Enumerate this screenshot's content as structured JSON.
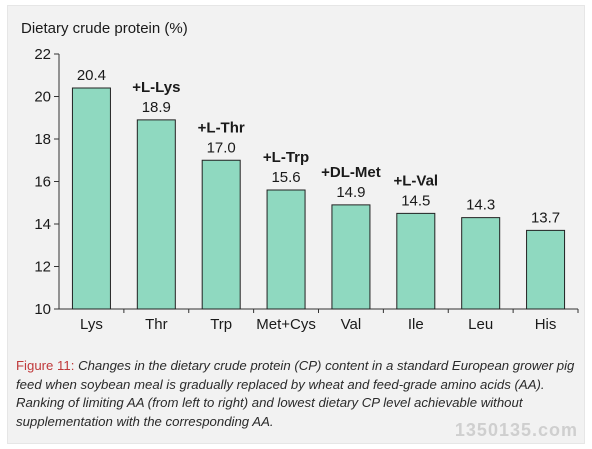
{
  "chart_data": {
    "type": "bar",
    "ylabel": "Dietary crude protein (%)",
    "ylim": [
      10,
      22
    ],
    "yticks": [
      10,
      12,
      14,
      16,
      18,
      20,
      22
    ],
    "categories": [
      "Lys",
      "Thr",
      "Trp",
      "Met+Cys",
      "Val",
      "Ile",
      "Leu",
      "His"
    ],
    "values": [
      20.4,
      18.9,
      17.0,
      15.6,
      14.9,
      14.5,
      14.3,
      13.7
    ],
    "value_labels": [
      "20.4",
      "18.9",
      "17.0",
      "15.6",
      "14.9",
      "14.5",
      "14.3",
      "13.7"
    ],
    "annotations": [
      {
        "category": "Thr",
        "text": "+L-Lys"
      },
      {
        "category": "Trp",
        "text": "+L-Thr"
      },
      {
        "category": "Met+Cys",
        "text": "+L-Trp"
      },
      {
        "category": "Val",
        "text": "+DL-Met"
      },
      {
        "category": "Ile",
        "text": "+L-Val"
      }
    ],
    "bar_color": "#8fd9c0",
    "bar_edge_color": "#222222",
    "grid": false,
    "legend": "none"
  },
  "caption": {
    "lead": "Figure 11:",
    "text": " Changes in the dietary crude protein (CP) content in a standard European grower pig feed when soybean meal is gradually replaced by wheat and feed-grade amino acids (AA). Ranking of limiting AA (from left to right) and lowest dietary CP level achievable without supplementation with the corresponding AA."
  },
  "watermark": {
    "text": "1350135.com"
  },
  "colors": {
    "panel_background": "#f2f2f2",
    "caption_lead": "#c0393b",
    "text": "#1a1a1a"
  }
}
